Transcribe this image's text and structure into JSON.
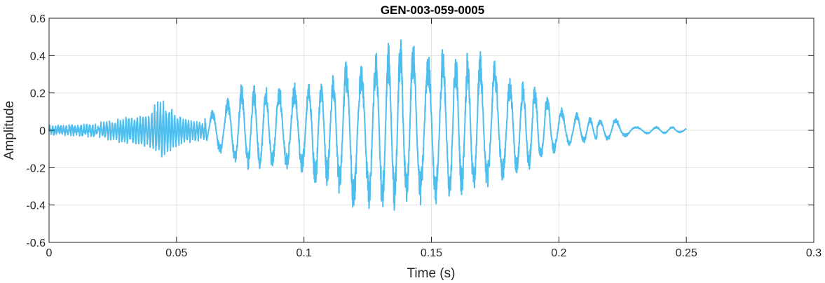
{
  "chart_data": {
    "type": "line",
    "title": "GEN-003-059-0005",
    "xlabel": "Time (s)",
    "ylabel": "Amplitude",
    "xlim": [
      0,
      0.3
    ],
    "ylim": [
      -0.6,
      0.6
    ],
    "xticks": [
      0,
      0.05,
      0.1,
      0.15,
      0.2,
      0.25,
      0.3
    ],
    "xtick_labels": [
      "0",
      "0.05",
      "0.1",
      "0.15",
      "0.2",
      "0.25",
      "0.3"
    ],
    "yticks": [
      -0.6,
      -0.4,
      -0.2,
      0,
      0.2,
      0.4,
      0.6
    ],
    "ytick_labels": [
      "-0.6",
      "-0.4",
      "-0.2",
      "0",
      "0.2",
      "0.4",
      "0.6"
    ],
    "grid": true,
    "series": [
      {
        "color": "#4DBEEE",
        "description_points": "waveform envelope peaks (time s, amplitude)",
        "envelope": [
          [
            0.0,
            0.02
          ],
          [
            0.02,
            0.03
          ],
          [
            0.03,
            0.07
          ],
          [
            0.04,
            0.09
          ],
          [
            0.043,
            0.18
          ],
          [
            0.05,
            0.08
          ],
          [
            0.06,
            0.04
          ],
          [
            0.065,
            0.13
          ],
          [
            0.07,
            0.17
          ],
          [
            0.075,
            0.26
          ],
          [
            0.08,
            0.25
          ],
          [
            0.09,
            0.25
          ],
          [
            0.1,
            0.26
          ],
          [
            0.11,
            0.26
          ],
          [
            0.115,
            0.39
          ],
          [
            0.12,
            0.34
          ],
          [
            0.125,
            0.38
          ],
          [
            0.13,
            0.45
          ],
          [
            0.135,
            0.48
          ],
          [
            0.14,
            0.53
          ],
          [
            0.145,
            0.46
          ],
          [
            0.15,
            0.44
          ],
          [
            0.155,
            0.47
          ],
          [
            0.16,
            0.43
          ],
          [
            0.165,
            0.42
          ],
          [
            0.17,
            0.43
          ],
          [
            0.175,
            0.4
          ],
          [
            0.18,
            0.3
          ],
          [
            0.185,
            0.27
          ],
          [
            0.19,
            0.27
          ],
          [
            0.195,
            0.21
          ],
          [
            0.2,
            0.13
          ],
          [
            0.205,
            0.1
          ],
          [
            0.21,
            0.09
          ],
          [
            0.215,
            0.05
          ],
          [
            0.22,
            0.09
          ],
          [
            0.225,
            0.05
          ],
          [
            0.23,
            0.02
          ],
          [
            0.24,
            0.02
          ],
          [
            0.25,
            0.02
          ]
        ],
        "min_envelope": [
          [
            0.0,
            -0.02
          ],
          [
            0.02,
            -0.03
          ],
          [
            0.03,
            -0.07
          ],
          [
            0.04,
            -0.1
          ],
          [
            0.045,
            -0.16
          ],
          [
            0.05,
            -0.08
          ],
          [
            0.06,
            -0.05
          ],
          [
            0.07,
            -0.17
          ],
          [
            0.08,
            -0.22
          ],
          [
            0.09,
            -0.2
          ],
          [
            0.1,
            -0.24
          ],
          [
            0.105,
            -0.34
          ],
          [
            0.11,
            -0.29
          ],
          [
            0.115,
            -0.36
          ],
          [
            0.12,
            -0.46
          ],
          [
            0.125,
            -0.42
          ],
          [
            0.13,
            -0.45
          ],
          [
            0.135,
            -0.44
          ],
          [
            0.14,
            -0.38
          ],
          [
            0.145,
            -0.4
          ],
          [
            0.15,
            -0.42
          ],
          [
            0.155,
            -0.36
          ],
          [
            0.16,
            -0.38
          ],
          [
            0.165,
            -0.35
          ],
          [
            0.17,
            -0.34
          ],
          [
            0.175,
            -0.29
          ],
          [
            0.18,
            -0.28
          ],
          [
            0.185,
            -0.25
          ],
          [
            0.19,
            -0.2
          ],
          [
            0.195,
            -0.16
          ],
          [
            0.2,
            -0.11
          ],
          [
            0.205,
            -0.08
          ],
          [
            0.21,
            -0.07
          ],
          [
            0.215,
            -0.05
          ],
          [
            0.22,
            -0.06
          ],
          [
            0.225,
            -0.04
          ],
          [
            0.23,
            -0.02
          ],
          [
            0.24,
            -0.02
          ],
          [
            0.25,
            -0.01
          ]
        ]
      }
    ]
  }
}
